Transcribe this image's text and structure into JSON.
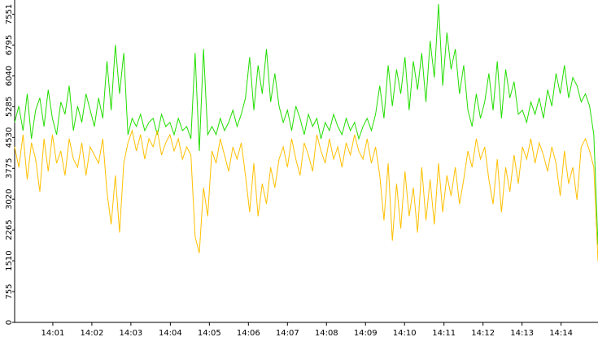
{
  "chart_data": {
    "type": "line",
    "ylim": [
      0,
      7900
    ],
    "yticks": [
      0,
      755,
      1510,
      2265,
      3020,
      3775,
      4530,
      5285,
      6040,
      6795,
      7551
    ],
    "xlim": [
      0,
      139
    ],
    "xticks": [
      {
        "value": 9.1,
        "label": "14:01"
      },
      {
        "value": 18.4,
        "label": "14:02"
      },
      {
        "value": 27.7,
        "label": "14:03"
      },
      {
        "value": 37.1,
        "label": "14:04"
      },
      {
        "value": 46.4,
        "label": "14:05"
      },
      {
        "value": 55.7,
        "label": "14:06"
      },
      {
        "value": 65.0,
        "label": "14:07"
      },
      {
        "value": 74.3,
        "label": "14:08"
      },
      {
        "value": 83.6,
        "label": "14:09"
      },
      {
        "value": 92.9,
        "label": "14:10"
      },
      {
        "value": 102.3,
        "label": "14:11"
      },
      {
        "value": 111.6,
        "label": "14:12"
      },
      {
        "value": 120.9,
        "label": "14:13"
      },
      {
        "value": 130.2,
        "label": "14:14"
      }
    ],
    "series": [
      {
        "color": "#22dd00",
        "values": [
          4900,
          5300,
          4700,
          5600,
          4500,
          5200,
          5500,
          4800,
          5700,
          5000,
          4600,
          5400,
          5100,
          5800,
          4700,
          5300,
          4900,
          5600,
          5200,
          4800,
          5500,
          5000,
          6400,
          5200,
          6800,
          5600,
          6600,
          4600,
          5000,
          4800,
          5100,
          4700,
          4900,
          5000,
          4600,
          5100,
          4800,
          4900,
          4600,
          5000,
          4700,
          4800,
          4500,
          6600,
          4200,
          6700,
          4600,
          4800,
          4600,
          5000,
          4700,
          4900,
          5200,
          4800,
          5100,
          5500,
          6500,
          5200,
          6300,
          5600,
          6700,
          5400,
          6100,
          5300,
          4900,
          5200,
          4700,
          5300,
          5000,
          4600,
          5100,
          4800,
          5000,
          4500,
          4900,
          4700,
          5100,
          4800,
          4600,
          5000,
          4700,
          4900,
          4500,
          4800,
          5000,
          4700,
          5100,
          5800,
          5000,
          6300,
          5300,
          6200,
          5600,
          6500,
          5200,
          6400,
          5700,
          6600,
          5400,
          6900,
          6000,
          7800,
          5800,
          7100,
          6200,
          6700,
          5600,
          6300,
          5200,
          4800,
          5600,
          5000,
          5400,
          6100,
          5200,
          6400,
          5000,
          6200,
          5500,
          5900,
          5100,
          5200,
          4900,
          5400,
          5100,
          5500,
          5000,
          5700,
          5300,
          6100,
          5600,
          6300,
          5500,
          6000,
          5800,
          5400,
          5600,
          5300,
          4600,
          1900
        ]
      },
      {
        "color": "#ffc000",
        "values": [
          4300,
          3800,
          4600,
          3500,
          4400,
          4000,
          3200,
          4500,
          3700,
          4600,
          3900,
          4200,
          3600,
          4500,
          4000,
          3800,
          4400,
          3600,
          4300,
          4100,
          3900,
          4500,
          3200,
          2400,
          3600,
          2200,
          3900,
          4400,
          4700,
          4200,
          4600,
          4000,
          4500,
          4300,
          4700,
          4100,
          4400,
          4600,
          4200,
          4500,
          4000,
          4300,
          4100,
          2100,
          1700,
          3300,
          2600,
          4200,
          3900,
          4500,
          4100,
          3700,
          4300,
          4000,
          4400,
          3600,
          2700,
          3900,
          2600,
          3400,
          2900,
          3800,
          3300,
          4000,
          4300,
          3800,
          4500,
          4000,
          3600,
          4400,
          4100,
          3700,
          4600,
          4200,
          3900,
          4500,
          4000,
          4300,
          3800,
          4400,
          4100,
          4600,
          4200,
          4000,
          4500,
          3900,
          4300,
          3600,
          2500,
          3900,
          2000,
          3400,
          2300,
          3700,
          2600,
          3300,
          2200,
          3800,
          2500,
          3500,
          2400,
          3900,
          2700,
          3600,
          3100,
          3800,
          2900,
          3500,
          4200,
          3800,
          4500,
          4000,
          4300,
          3500,
          2900,
          4000,
          2700,
          3800,
          3200,
          4100,
          3400,
          4300,
          4000,
          4500,
          3900,
          4400,
          4100,
          3700,
          4300,
          3900,
          3100,
          4200,
          3400,
          3800,
          3000,
          4300,
          4500,
          4200,
          3800,
          1500
        ]
      }
    ]
  }
}
